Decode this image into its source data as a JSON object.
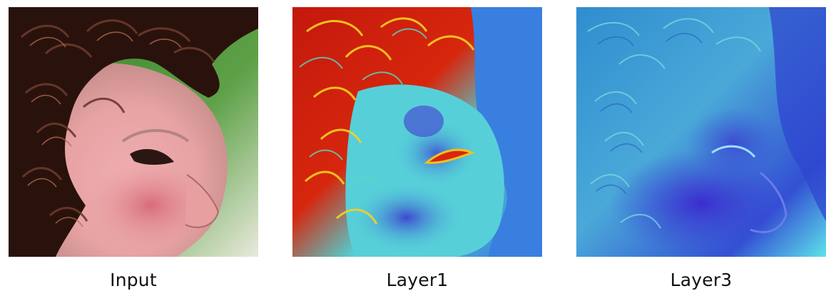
{
  "panels": [
    {
      "id": "input",
      "caption": "Input",
      "icon": "face-photo-icon"
    },
    {
      "id": "layer1",
      "caption": "Layer1",
      "icon": "jet-heatmap-icon"
    },
    {
      "id": "layer3",
      "caption": "Layer3",
      "icon": "blue-feature-map-icon"
    }
  ],
  "colors": {
    "hair_dark": "#2a120c",
    "skin": "#e7a2a3",
    "cheek": "#d9727e",
    "background_green": "#3e8a2e",
    "heat_red": "#c81b0a",
    "heat_cyan": "#45d4cf",
    "heat_blue": "#3454d8",
    "layer3_blue": "#3a4cd6",
    "layer3_cyan": "#48b7d9"
  }
}
